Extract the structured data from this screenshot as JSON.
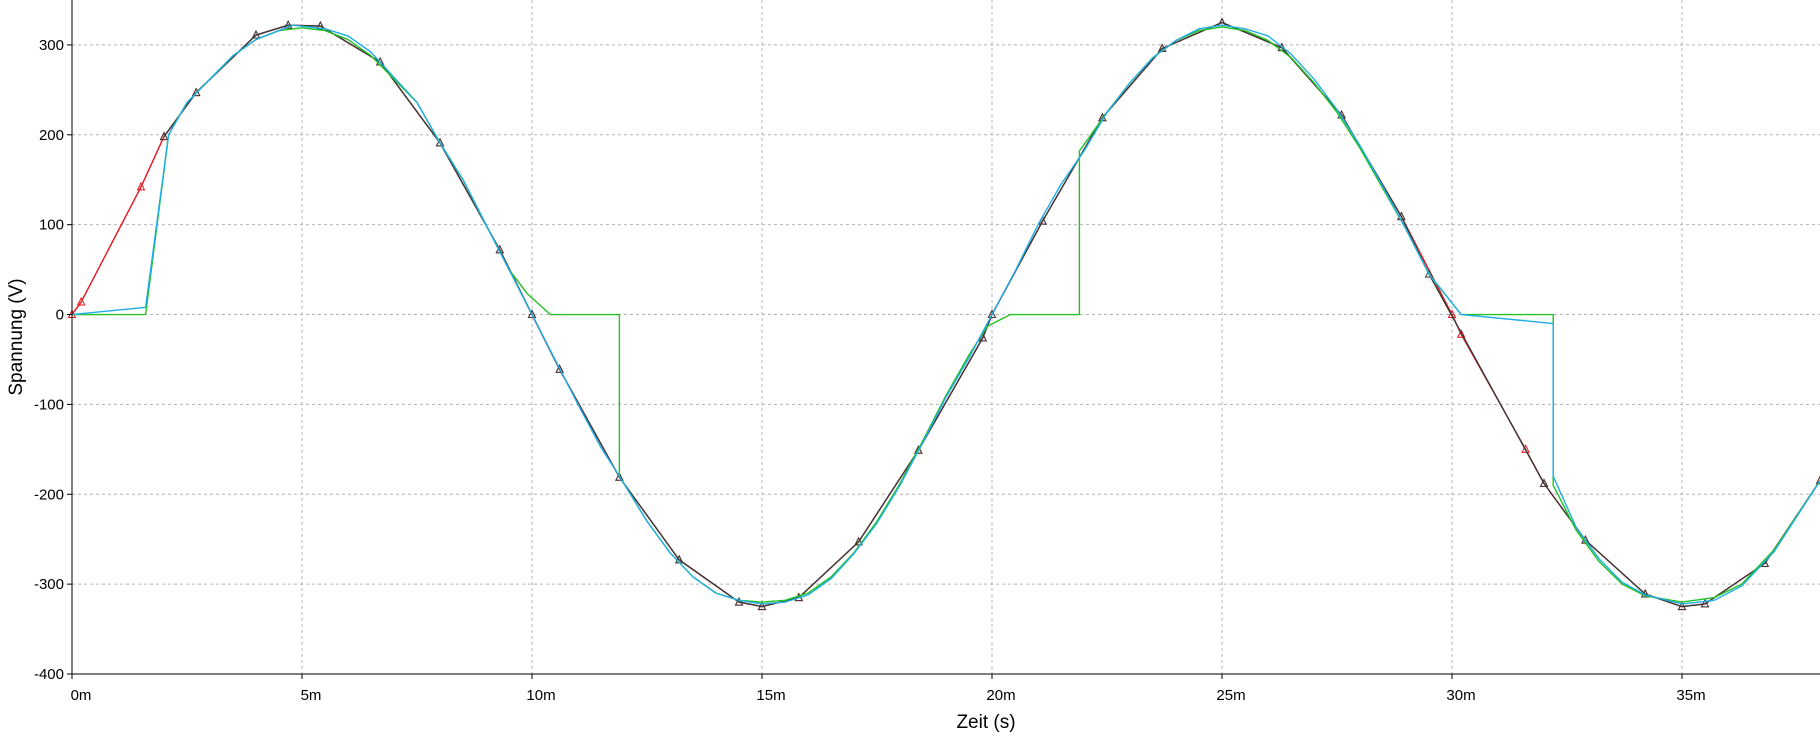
{
  "chart_data": {
    "type": "line",
    "xlabel": "Zeit (s)",
    "ylabel": "Spannung (V)",
    "x_unit_scale": 0.001,
    "xlim": [
      0,
      0.038
    ],
    "ylim": [
      -400,
      350
    ],
    "x_ticks": [
      {
        "value": 0,
        "label": "0m"
      },
      {
        "value": 0.005,
        "label": "5m"
      },
      {
        "value": 0.01,
        "label": "10m"
      },
      {
        "value": 0.015,
        "label": "15m"
      },
      {
        "value": 0.02,
        "label": "20m"
      },
      {
        "value": 0.025,
        "label": "25m"
      },
      {
        "value": 0.03,
        "label": "30m"
      },
      {
        "value": 0.035,
        "label": "35m"
      }
    ],
    "y_ticks": [
      {
        "value": 300,
        "label": "300"
      },
      {
        "value": 200,
        "label": "200"
      },
      {
        "value": 100,
        "label": "100"
      },
      {
        "value": 0,
        "label": "0"
      },
      {
        "value": -100,
        "label": "-100"
      },
      {
        "value": -200,
        "label": "-200"
      },
      {
        "value": -300,
        "label": "-300"
      },
      {
        "value": -400,
        "label": "-400"
      }
    ],
    "grid": true,
    "grid_style": "dashed",
    "series": [
      {
        "color": "#e8141c",
        "marker": "triangle",
        "points": [
          [
            0,
            0
          ],
          [
            0.0002,
            14
          ],
          [
            0.0015,
            142
          ],
          [
            0.002,
            198
          ],
          [
            0.0027,
            247
          ],
          [
            0.004,
            311
          ],
          [
            0.0047,
            322
          ],
          [
            0.0054,
            321
          ],
          [
            0.0067,
            281
          ],
          [
            0.008,
            191
          ],
          [
            0.0093,
            72
          ],
          [
            0.01,
            0
          ],
          [
            0.0106,
            -61
          ],
          [
            0.0119,
            -181
          ],
          [
            0.0132,
            -273
          ],
          [
            0.0145,
            -320
          ],
          [
            0.015,
            -325
          ],
          [
            0.0158,
            -315
          ],
          [
            0.0171,
            -253
          ],
          [
            0.0184,
            -151
          ],
          [
            0.0198,
            -26
          ],
          [
            0.02,
            0
          ],
          [
            0.0211,
            104
          ],
          [
            0.0224,
            219
          ],
          [
            0.0237,
            296
          ],
          [
            0.025,
            325
          ],
          [
            0.0263,
            297
          ],
          [
            0.0276,
            222
          ],
          [
            0.0289,
            109
          ],
          [
            0.03,
            0
          ],
          [
            0.0302,
            -22
          ],
          [
            0.0316,
            -150
          ],
          [
            0.032,
            -188
          ],
          [
            0.0329,
            -251
          ],
          [
            0.0342,
            -311
          ],
          [
            0.035,
            -325
          ],
          [
            0.0355,
            -322
          ],
          [
            0.0368,
            -277
          ],
          [
            0.038,
            -185
          ]
        ]
      },
      {
        "color": "#3a3a3a",
        "marker": "triangle",
        "points": [
          [
            0.002,
            198
          ],
          [
            0.0027,
            247
          ],
          [
            0.004,
            311
          ],
          [
            0.0047,
            322
          ],
          [
            0.0054,
            321
          ],
          [
            0.0067,
            281
          ],
          [
            0.008,
            191
          ],
          [
            0.0093,
            72
          ],
          [
            0.01,
            0
          ],
          [
            0.0106,
            -61
          ],
          [
            0.0119,
            -181
          ],
          [
            0.0132,
            -273
          ],
          [
            0.0145,
            -320
          ],
          [
            0.015,
            -325
          ],
          [
            0.0158,
            -315
          ],
          [
            0.0171,
            -253
          ],
          [
            0.0184,
            -151
          ],
          [
            0.0198,
            -26
          ],
          [
            0.02,
            0
          ],
          [
            0.0211,
            104
          ],
          [
            0.0224,
            219
          ],
          [
            0.0237,
            296
          ],
          [
            0.025,
            325
          ],
          [
            0.0263,
            297
          ],
          [
            0.0276,
            222
          ],
          [
            0.0289,
            109
          ],
          [
            0.0295,
            45
          ],
          [
            0.032,
            -188
          ],
          [
            0.0329,
            -251
          ],
          [
            0.0342,
            -311
          ],
          [
            0.035,
            -325
          ],
          [
            0.0355,
            -322
          ],
          [
            0.0368,
            -277
          ],
          [
            0.038,
            -185
          ]
        ]
      },
      {
        "color": "#22c222",
        "marker": "none",
        "points": [
          [
            0,
            0
          ],
          [
            0.0016,
            0
          ],
          [
            0.0021,
            200
          ],
          [
            0.0025,
            236
          ],
          [
            0.003,
            262
          ],
          [
            0.0035,
            288
          ],
          [
            0.004,
            306
          ],
          [
            0.0045,
            316
          ],
          [
            0.005,
            319
          ],
          [
            0.0055,
            316
          ],
          [
            0.006,
            306
          ],
          [
            0.0065,
            288
          ],
          [
            0.007,
            262
          ],
          [
            0.0075,
            236
          ],
          [
            0.008,
            191
          ],
          [
            0.0085,
            150
          ],
          [
            0.009,
            100
          ],
          [
            0.0095,
            50
          ],
          [
            0.0099,
            23
          ],
          [
            0.0104,
            0
          ],
          [
            0.0119,
            0
          ],
          [
            0.0119,
            -180
          ],
          [
            0.0125,
            -230
          ],
          [
            0.013,
            -265
          ],
          [
            0.0135,
            -292
          ],
          [
            0.014,
            -310
          ],
          [
            0.0145,
            -318
          ],
          [
            0.015,
            -320
          ],
          [
            0.0155,
            -318
          ],
          [
            0.016,
            -310
          ],
          [
            0.0165,
            -292
          ],
          [
            0.017,
            -265
          ],
          [
            0.0175,
            -230
          ],
          [
            0.018,
            -188
          ],
          [
            0.0185,
            -140
          ],
          [
            0.019,
            -90
          ],
          [
            0.0195,
            -45
          ],
          [
            0.0199,
            -13
          ],
          [
            0.0204,
            0
          ],
          [
            0.0219,
            0
          ],
          [
            0.0219,
            182
          ],
          [
            0.0225,
            225
          ],
          [
            0.023,
            258
          ],
          [
            0.0235,
            286
          ],
          [
            0.024,
            305
          ],
          [
            0.0245,
            316
          ],
          [
            0.025,
            320
          ],
          [
            0.0255,
            316
          ],
          [
            0.026,
            305
          ],
          [
            0.0265,
            286
          ],
          [
            0.027,
            258
          ],
          [
            0.0275,
            225
          ],
          [
            0.028,
            185
          ],
          [
            0.0285,
            140
          ],
          [
            0.029,
            95
          ],
          [
            0.0295,
            45
          ],
          [
            0.0302,
            0
          ],
          [
            0.0322,
            0
          ],
          [
            0.0322,
            -190
          ],
          [
            0.0327,
            -240
          ],
          [
            0.0332,
            -275
          ],
          [
            0.0337,
            -300
          ],
          [
            0.0342,
            -313
          ],
          [
            0.035,
            -320
          ],
          [
            0.0357,
            -315
          ],
          [
            0.0363,
            -300
          ],
          [
            0.037,
            -262
          ],
          [
            0.038,
            -185
          ]
        ]
      },
      {
        "color": "#1eaee6",
        "marker": "none",
        "points": [
          [
            0,
            0
          ],
          [
            0.0016,
            8
          ],
          [
            0.0021,
            200
          ],
          [
            0.0025,
            236
          ],
          [
            0.003,
            262
          ],
          [
            0.0035,
            288
          ],
          [
            0.004,
            306
          ],
          [
            0.0045,
            316
          ],
          [
            0.0048,
            322
          ],
          [
            0.0055,
            318
          ],
          [
            0.006,
            310
          ],
          [
            0.0065,
            292
          ],
          [
            0.007,
            264
          ],
          [
            0.0075,
            236
          ],
          [
            0.008,
            191
          ],
          [
            0.0085,
            150
          ],
          [
            0.009,
            100
          ],
          [
            0.0095,
            50
          ],
          [
            0.01,
            0
          ],
          [
            0.0105,
            -50
          ],
          [
            0.011,
            -100
          ],
          [
            0.0115,
            -148
          ],
          [
            0.0119,
            -180
          ],
          [
            0.0125,
            -230
          ],
          [
            0.013,
            -265
          ],
          [
            0.0135,
            -292
          ],
          [
            0.014,
            -310
          ],
          [
            0.0145,
            -318
          ],
          [
            0.015,
            -322
          ],
          [
            0.0155,
            -320
          ],
          [
            0.016,
            -312
          ],
          [
            0.0165,
            -294
          ],
          [
            0.017,
            -266
          ],
          [
            0.0175,
            -232
          ],
          [
            0.018,
            -190
          ],
          [
            0.0185,
            -142
          ],
          [
            0.019,
            -92
          ],
          [
            0.0195,
            -48
          ],
          [
            0.02,
            0
          ],
          [
            0.0205,
            48
          ],
          [
            0.021,
            100
          ],
          [
            0.0215,
            145
          ],
          [
            0.022,
            182
          ],
          [
            0.0225,
            225
          ],
          [
            0.023,
            258
          ],
          [
            0.0235,
            286
          ],
          [
            0.024,
            305
          ],
          [
            0.0245,
            318
          ],
          [
            0.025,
            322
          ],
          [
            0.0255,
            318
          ],
          [
            0.026,
            310
          ],
          [
            0.0265,
            290
          ],
          [
            0.027,
            262
          ],
          [
            0.0275,
            228
          ],
          [
            0.028,
            188
          ],
          [
            0.0285,
            142
          ],
          [
            0.029,
            95
          ],
          [
            0.0295,
            45
          ],
          [
            0.0302,
            0
          ],
          [
            0.0322,
            -10
          ],
          [
            0.0322,
            -180
          ],
          [
            0.0327,
            -237
          ],
          [
            0.0332,
            -272
          ],
          [
            0.0337,
            -298
          ],
          [
            0.0342,
            -312
          ],
          [
            0.035,
            -322
          ],
          [
            0.0357,
            -318
          ],
          [
            0.0363,
            -302
          ],
          [
            0.037,
            -264
          ],
          [
            0.038,
            -185
          ]
        ]
      }
    ]
  }
}
